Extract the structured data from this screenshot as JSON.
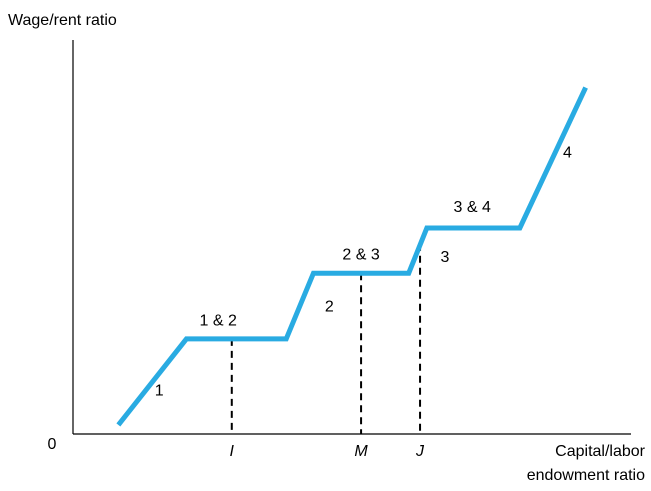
{
  "chart_data": {
    "type": "line",
    "ylabel": "Wage/rent ratio",
    "xlabel_lines": [
      "Capital/labor",
      "endowment ratio"
    ],
    "origin_label": "0",
    "line_color": "#29abe2",
    "grid": false,
    "legend": "none",
    "series": [
      {
        "points": [
          {
            "x": 1.0,
            "y": 0.2
          },
          {
            "x": 2.5,
            "y": 2.1
          },
          {
            "x": 4.7,
            "y": 2.1
          },
          {
            "x": 5.3,
            "y": 3.55
          },
          {
            "x": 7.4,
            "y": 3.55
          },
          {
            "x": 7.8,
            "y": 4.55
          },
          {
            "x": 9.85,
            "y": 4.55
          },
          {
            "x": 11.3,
            "y": 7.65
          }
        ]
      }
    ],
    "segment_labels": [
      {
        "text": "1",
        "x": 1.9,
        "y": 0.85
      },
      {
        "text": "1 & 2",
        "x": 3.2,
        "y": 2.4
      },
      {
        "text": "2",
        "x": 5.65,
        "y": 2.7
      },
      {
        "text": "2 & 3",
        "x": 6.35,
        "y": 3.85
      },
      {
        "text": "3",
        "x": 8.2,
        "y": 3.8
      },
      {
        "text": "3 & 4",
        "x": 8.8,
        "y": 4.9
      },
      {
        "text": "4",
        "x": 10.9,
        "y": 6.1
      }
    ],
    "markers": [
      {
        "label": "I",
        "x": 3.5,
        "y": 2.1
      },
      {
        "label": "M",
        "x": 6.35,
        "y": 3.55
      },
      {
        "label": "J",
        "x": 7.65,
        "y": 4.2
      }
    ],
    "xlim": [
      0,
      12.3
    ],
    "ylim": [
      0,
      8.7
    ]
  }
}
